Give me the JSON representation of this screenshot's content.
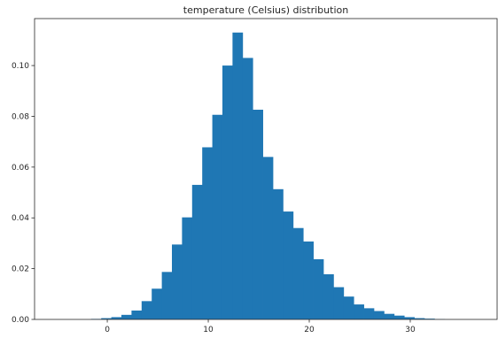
{
  "chart_data": {
    "type": "bar",
    "title": "temperature (Celsius) distribution",
    "xlabel": "",
    "ylabel": "",
    "xlim": [
      -7.2,
      38.6
    ],
    "ylim": [
      0,
      0.1185
    ],
    "x_ticks": [
      0,
      10,
      20,
      30
    ],
    "y_ticks": [
      0.0,
      0.02,
      0.04,
      0.06,
      0.08,
      0.1
    ],
    "y_tick_labels": [
      "0.00",
      "0.02",
      "0.04",
      "0.06",
      "0.08",
      "0.10"
    ],
    "x_tick_labels": [
      "0",
      "10",
      "20",
      "30"
    ],
    "bin_width": 1.0,
    "bin_start": -1.6,
    "values": [
      0.0002,
      0.0005,
      0.0009,
      0.0018,
      0.0035,
      0.0072,
      0.0121,
      0.0187,
      0.0295,
      0.0402,
      0.053,
      0.0678,
      0.0806,
      0.1,
      0.113,
      0.103,
      0.0826,
      0.064,
      0.0513,
      0.0425,
      0.036,
      0.0307,
      0.0237,
      0.0178,
      0.0127,
      0.009,
      0.0059,
      0.0044,
      0.0033,
      0.0022,
      0.0015,
      0.0009,
      0.0005,
      0.0003,
      0.0001
    ],
    "bar_color": "#1f77b4",
    "grid": false,
    "legend": "none"
  }
}
